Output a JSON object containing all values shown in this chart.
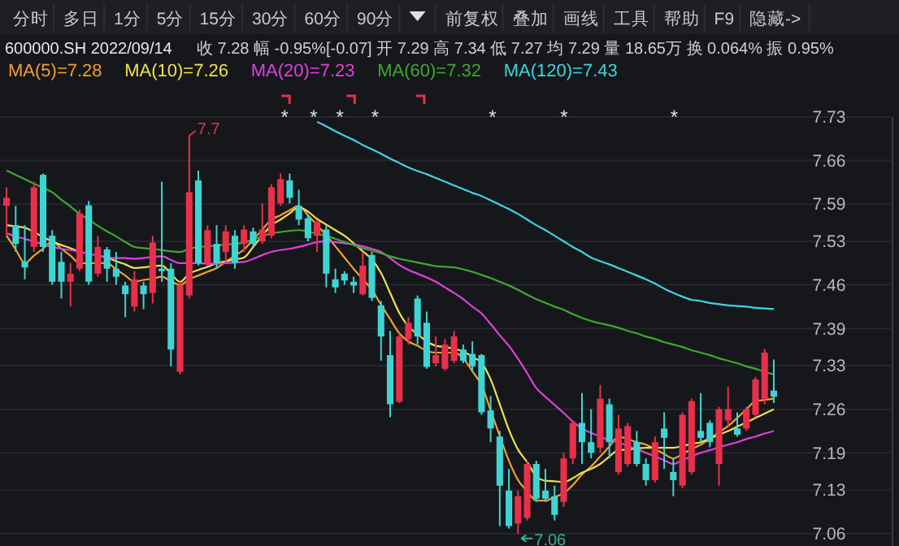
{
  "chart_data": {
    "type": "candlestick",
    "title": "600000.SH 2022/09/14",
    "subtitle": "收 7.28  幅 -0.95%[-0.07]  开 7.29  高 7.34  低 7.27  均 7.29  量 18.65万  换 0.064%  振 0.95%",
    "categories": [
      null,
      null,
      null,
      null,
      null,
      null,
      null,
      null,
      null,
      null,
      null,
      null,
      null,
      null,
      null,
      null,
      null,
      null,
      null,
      null,
      null,
      null,
      null,
      null,
      null,
      null,
      null,
      null,
      null,
      null,
      null,
      null,
      null,
      null,
      null,
      null,
      null,
      null,
      null,
      null,
      null,
      null,
      null,
      null,
      null,
      null,
      null,
      null,
      null,
      null,
      null,
      null,
      null,
      null,
      null,
      null,
      null,
      null,
      null,
      null,
      null,
      null,
      null,
      null,
      null,
      null,
      null,
      null,
      null,
      null,
      null,
      null,
      null,
      null,
      null,
      null,
      null,
      null,
      null,
      null,
      null,
      null,
      null,
      null,
      null
    ],
    "ohlc": [
      [
        7.587,
        7.617,
        7.539,
        7.6
      ],
      [
        7.556,
        7.587,
        7.513,
        7.526
      ],
      [
        7.497,
        7.556,
        7.469,
        7.488
      ],
      [
        7.521,
        7.626,
        7.513,
        7.617
      ],
      [
        7.637,
        7.639,
        7.513,
        7.521
      ],
      [
        7.539,
        7.548,
        7.46,
        7.465
      ],
      [
        7.497,
        7.513,
        7.438,
        7.465
      ],
      [
        7.465,
        7.495,
        7.425,
        7.478
      ],
      [
        7.486,
        7.581,
        7.482,
        7.575
      ],
      [
        7.588,
        7.595,
        7.46,
        7.465
      ],
      [
        7.478,
        7.539,
        7.473,
        7.521
      ],
      [
        7.517,
        7.521,
        7.465,
        7.486
      ],
      [
        7.486,
        7.513,
        7.46,
        7.473
      ],
      [
        7.459,
        7.465,
        7.408,
        7.445
      ],
      [
        7.425,
        7.482,
        7.417,
        7.469
      ],
      [
        7.459,
        7.465,
        7.421,
        7.445
      ],
      [
        7.447,
        7.539,
        7.43,
        7.528
      ],
      [
        7.486,
        7.626,
        7.465,
        7.482
      ],
      [
        7.486,
        7.495,
        7.329,
        7.356
      ],
      [
        7.32,
        7.465,
        7.316,
        7.46
      ],
      [
        7.443,
        7.7,
        7.438,
        7.609
      ],
      [
        7.628,
        7.644,
        7.491,
        7.495
      ],
      [
        7.495,
        7.556,
        7.491,
        7.548
      ],
      [
        7.526,
        7.556,
        7.486,
        7.495
      ],
      [
        7.513,
        7.556,
        7.495,
        7.546
      ],
      [
        7.539,
        7.548,
        7.486,
        7.495
      ],
      [
        7.526,
        7.556,
        7.513,
        7.549
      ],
      [
        7.546,
        7.552,
        7.521,
        7.526
      ],
      [
        7.53,
        7.591,
        7.526,
        7.549
      ],
      [
        7.539,
        7.622,
        7.535,
        7.617
      ],
      [
        7.591,
        7.639,
        7.587,
        7.63
      ],
      [
        7.628,
        7.639,
        7.591,
        7.6
      ],
      [
        7.587,
        7.613,
        7.556,
        7.565
      ],
      [
        7.567,
        7.574,
        7.53,
        7.535
      ],
      [
        7.539,
        7.565,
        7.513,
        7.561
      ],
      [
        7.549,
        7.556,
        7.456,
        7.478
      ],
      [
        7.469,
        7.486,
        7.447,
        7.456
      ],
      [
        7.478,
        7.482,
        7.46,
        7.467
      ],
      [
        7.465,
        7.473,
        7.447,
        7.459
      ],
      [
        7.445,
        7.513,
        7.443,
        7.491
      ],
      [
        7.508,
        7.513,
        7.434,
        7.439
      ],
      [
        7.427,
        7.434,
        7.338,
        7.377
      ],
      [
        7.347,
        7.386,
        7.247,
        7.268
      ],
      [
        7.272,
        7.382,
        7.27,
        7.377
      ],
      [
        7.373,
        7.408,
        7.364,
        7.399
      ],
      [
        7.438,
        7.443,
        7.364,
        7.377
      ],
      [
        7.399,
        7.417,
        7.325,
        7.328
      ],
      [
        7.334,
        7.377,
        7.329,
        7.347
      ],
      [
        7.325,
        7.373,
        7.322,
        7.364
      ],
      [
        7.338,
        7.386,
        7.334,
        7.377
      ],
      [
        7.356,
        7.364,
        7.334,
        7.338
      ],
      [
        7.349,
        7.369,
        7.321,
        7.329
      ],
      [
        7.347,
        7.349,
        7.251,
        7.255
      ],
      [
        7.258,
        7.281,
        7.207,
        7.229
      ],
      [
        7.216,
        7.225,
        7.072,
        7.137
      ],
      [
        7.129,
        7.164,
        7.068,
        7.072
      ],
      [
        7.076,
        7.129,
        7.06,
        7.12
      ],
      [
        7.085,
        7.177,
        7.081,
        7.172
      ],
      [
        7.172,
        7.177,
        7.111,
        7.116
      ],
      [
        7.129,
        7.164,
        7.111,
        7.116
      ],
      [
        7.12,
        7.137,
        7.081,
        7.09
      ],
      [
        7.111,
        7.19,
        7.103,
        7.181
      ],
      [
        7.181,
        7.242,
        7.172,
        7.238
      ],
      [
        7.238,
        7.286,
        7.172,
        7.207
      ],
      [
        7.207,
        7.26,
        7.181,
        7.19
      ],
      [
        7.198,
        7.299,
        7.19,
        7.277
      ],
      [
        7.268,
        7.277,
        7.181,
        7.207
      ],
      [
        7.159,
        7.251,
        7.155,
        7.229
      ],
      [
        7.172,
        7.238,
        7.168,
        7.233
      ],
      [
        7.207,
        7.225,
        7.168,
        7.172
      ],
      [
        7.172,
        7.181,
        7.137,
        7.146
      ],
      [
        7.146,
        7.216,
        7.142,
        7.207
      ],
      [
        7.229,
        7.255,
        7.164,
        7.214
      ],
      [
        7.159,
        7.181,
        7.12,
        7.146
      ],
      [
        7.137,
        7.255,
        7.133,
        7.251
      ],
      [
        7.159,
        7.277,
        7.155,
        7.273
      ],
      [
        7.225,
        7.286,
        7.207,
        7.214
      ],
      [
        7.238,
        7.242,
        7.199,
        7.207
      ],
      [
        7.172,
        7.264,
        7.137,
        7.26
      ],
      [
        7.242,
        7.296,
        7.233,
        7.26
      ],
      [
        7.229,
        7.255,
        7.216,
        7.219
      ],
      [
        7.229,
        7.264,
        7.225,
        7.26
      ],
      [
        7.251,
        7.312,
        7.247,
        7.308
      ],
      [
        7.277,
        7.357,
        7.268,
        7.351
      ],
      [
        7.29,
        7.34,
        7.27,
        7.28
      ]
    ],
    "colors": [
      "#e8304a",
      "#3fd4d4",
      "#3fd4d4",
      "#e8304a",
      "#3fd4d4",
      "#3fd4d4",
      "#3fd4d4",
      "#e8304a",
      "#e8304a",
      "#3fd4d4",
      "#e8304a",
      "#3fd4d4",
      "#3fd4d4",
      "#3fd4d4",
      "#e8304a",
      "#3fd4d4",
      "#e8304a",
      "#3fd4d4",
      "#3fd4d4",
      "#e8304a",
      "#e8304a",
      "#3fd4d4",
      "#e8304a",
      "#3fd4d4",
      "#e8304a",
      "#3fd4d4",
      "#e8304a",
      "#3fd4d4",
      "#e8304a",
      "#e8304a",
      "#e8304a",
      "#3fd4d4",
      "#3fd4d4",
      "#3fd4d4",
      "#e8304a",
      "#3fd4d4",
      "#3fd4d4",
      "#3fd4d4",
      "#3fd4d4",
      "#e8304a",
      "#3fd4d4",
      "#3fd4d4",
      "#3fd4d4",
      "#e8304a",
      "#e8304a",
      "#3fd4d4",
      "#3fd4d4",
      "#e8304a",
      "#e8304a",
      "#e8304a",
      "#3fd4d4",
      "#3fd4d4",
      "#3fd4d4",
      "#3fd4d4",
      "#3fd4d4",
      "#3fd4d4",
      "#e8304a",
      "#e8304a",
      "#3fd4d4",
      "#3fd4d4",
      "#3fd4d4",
      "#e8304a",
      "#e8304a",
      "#3fd4d4",
      "#3fd4d4",
      "#e8304a",
      "#3fd4d4",
      "#e8304a",
      "#e8304a",
      "#3fd4d4",
      "#3fd4d4",
      "#e8304a",
      "#3fd4d4",
      "#3fd4d4",
      "#e8304a",
      "#e8304a",
      "#3fd4d4",
      "#3fd4d4",
      "#e8304a",
      "#e8304a",
      "#3fd4d4",
      "#e8304a",
      "#e8304a",
      "#e8304a",
      "#3fd4d4"
    ],
    "series": [
      {
        "type": "line",
        "name": "MA(5)=7.28",
        "color": "#f0a030",
        "values": [
          7.539,
          7.517,
          7.495,
          7.507,
          7.518,
          7.53,
          7.518,
          7.507,
          7.495,
          7.495,
          7.495,
          7.495,
          7.485,
          7.475,
          7.465,
          7.468,
          7.47,
          7.473,
          7.466,
          7.46,
          7.469,
          7.475,
          7.481,
          7.487,
          7.497,
          7.507,
          7.517,
          7.533,
          7.549,
          7.565,
          7.572,
          7.58,
          7.587,
          7.572,
          7.556,
          7.54,
          7.522,
          7.504,
          7.486,
          7.469,
          7.452,
          7.428,
          7.405,
          7.382,
          7.369,
          7.362,
          7.354,
          7.351,
          7.351,
          7.351,
          7.342,
          7.321,
          7.299,
          7.258,
          7.217,
          7.177,
          7.146,
          7.128,
          7.113,
          7.113,
          7.119,
          7.125,
          7.138,
          7.155,
          7.168,
          7.184,
          7.2,
          7.216,
          7.212,
          7.207,
          7.203,
          7.196,
          7.188,
          7.181,
          7.188,
          7.196,
          7.203,
          7.213,
          7.223,
          7.233,
          7.246,
          7.26,
          7.273,
          7.275,
          7.277
        ]
      },
      {
        "type": "line",
        "name": "MA(10)=7.26",
        "color": "#eee050",
        "values": [
          7.556,
          7.554,
          7.552,
          7.545,
          7.537,
          7.53,
          7.524,
          7.519,
          7.513,
          null,
          7.507,
          7.504,
          7.498,
          7.493,
          7.487,
          7.488,
          7.49,
          7.491,
          7.478,
          7.465,
          7.478,
          7.484,
          7.489,
          7.495,
          7.498,
          7.501,
          7.504,
          7.521,
          7.539,
          7.556,
          7.565,
          7.575,
          7.585,
          7.578,
          7.566,
          7.557,
          7.548,
          7.539,
          7.527,
          7.514,
          7.501,
          7.479,
          7.447,
          7.415,
          7.393,
          7.381,
          7.369,
          7.362,
          7.36,
          7.357,
          7.353,
          7.344,
          7.335,
          7.308,
          7.268,
          7.227,
          7.195,
          7.175,
          7.152,
          7.145,
          7.144,
          7.143,
          7.149,
          7.158,
          7.164,
          7.172,
          7.184,
          7.194,
          7.195,
          7.197,
          7.198,
          7.198,
          7.198,
          7.198,
          7.201,
          7.204,
          7.207,
          7.213,
          7.219,
          7.225,
          7.232,
          7.239,
          7.246,
          7.253,
          7.26
        ]
      },
      {
        "type": "line",
        "name": "MA(20)=7.23",
        "color": "#e040e0",
        "values": [
          7.543,
          7.538,
          7.534,
          7.53,
          7.525,
          7.521,
          7.518,
          7.516,
          7.513,
          7.51,
          7.507,
          7.504,
          7.503,
          7.503,
          7.502,
          7.503,
          7.505,
          7.506,
          7.5,
          7.495,
          7.495,
          7.495,
          7.494,
          7.494,
          7.495,
          7.496,
          7.497,
          7.502,
          7.508,
          7.513,
          7.516,
          7.518,
          7.521,
          7.525,
          7.529,
          7.53,
          7.529,
          7.527,
          7.525,
          7.522,
          7.518,
          7.513,
          7.503,
          7.492,
          7.484,
          7.478,
          7.472,
          7.465,
          7.456,
          7.447,
          7.437,
          7.425,
          7.414,
          7.397,
          7.379,
          7.362,
          7.341,
          7.318,
          7.294,
          7.28,
          7.267,
          7.254,
          7.24,
          7.229,
          7.222,
          7.216,
          7.21,
          7.207,
          7.201,
          7.196,
          7.19,
          7.184,
          7.178,
          7.172,
          7.178,
          7.184,
          7.19,
          7.194,
          7.199,
          7.203,
          7.207,
          7.212,
          7.216,
          7.221,
          7.225
        ]
      },
      {
        "type": "line",
        "name": "MA(60)=7.32",
        "color": "#3ea830",
        "values": [
          7.644,
          7.637,
          7.63,
          7.623,
          7.616,
          7.609,
          7.597,
          7.586,
          7.574,
          7.565,
          7.555,
          7.546,
          7.538,
          7.529,
          7.521,
          7.519,
          7.518,
          7.516,
          7.514,
          7.513,
          7.518,
          7.521,
          7.522,
          7.523,
          7.525,
          7.526,
          7.528,
          7.533,
          7.538,
          7.543,
          7.545,
          7.547,
          7.548,
          7.546,
          7.542,
          7.539,
          7.534,
          7.529,
          7.524,
          7.519,
          7.515,
          7.511,
          7.506,
          7.502,
          7.499,
          7.496,
          7.493,
          7.49,
          7.489,
          7.488,
          7.485,
          7.481,
          7.476,
          7.471,
          7.465,
          7.459,
          7.452,
          7.444,
          7.437,
          7.431,
          7.425,
          7.42,
          7.413,
          7.407,
          7.402,
          7.398,
          7.395,
          7.391,
          7.386,
          7.382,
          7.377,
          7.373,
          7.368,
          7.364,
          7.36,
          7.355,
          7.351,
          7.347,
          7.342,
          7.338,
          7.334,
          7.329,
          7.325,
          7.32,
          7.316
        ]
      },
      {
        "type": "line",
        "name": "MA(120)=7.43",
        "color": "#40d4e0",
        "values": [
          null,
          null,
          null,
          null,
          null,
          null,
          null,
          null,
          null,
          null,
          null,
          null,
          null,
          null,
          null,
          null,
          null,
          null,
          null,
          null,
          null,
          null,
          null,
          null,
          null,
          null,
          null,
          null,
          null,
          null,
          null,
          null,
          null,
          null,
          7.722,
          7.715,
          7.707,
          7.7,
          7.693,
          7.685,
          7.678,
          7.671,
          7.663,
          7.656,
          7.649,
          7.643,
          7.638,
          7.632,
          7.626,
          7.62,
          7.614,
          7.608,
          7.603,
          7.596,
          7.589,
          7.582,
          7.574,
          7.565,
          7.556,
          7.548,
          7.539,
          7.53,
          7.521,
          7.513,
          7.504,
          7.498,
          7.493,
          7.487,
          7.481,
          7.475,
          7.469,
          7.462,
          7.454,
          7.447,
          7.441,
          7.436,
          7.434,
          7.431,
          7.429,
          7.427,
          7.426,
          7.425,
          7.423,
          7.422,
          7.421
        ]
      }
    ],
    "ylim": [
      7.04,
      7.73
    ],
    "yticks": [
      7.06,
      7.13,
      7.19,
      7.26,
      7.33,
      7.39,
      7.46,
      7.53,
      7.59,
      7.66,
      7.73
    ],
    "grid": "y",
    "legend": "top left",
    "tick_labels": "y",
    "annotations": [
      "分时",
      "多日",
      "1分",
      "5分",
      "15分",
      "30分",
      "60分",
      "90分",
      "前复权",
      "叠加",
      "画线",
      "工具",
      "帮助",
      "F9",
      "隐藏->",
      "7.7",
      "7.06",
      "*",
      "*",
      "*",
      "*",
      "*",
      "*",
      "*"
    ]
  }
}
